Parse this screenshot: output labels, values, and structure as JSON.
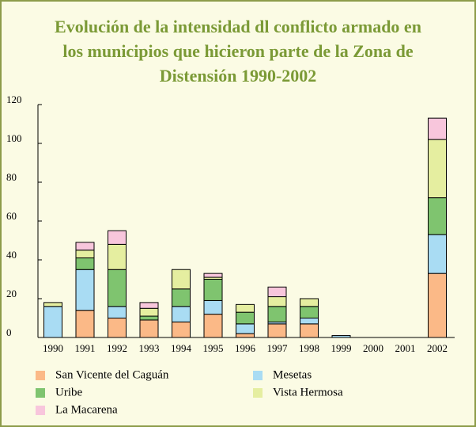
{
  "chart_data": {
    "type": "bar",
    "stacked": true,
    "title_lines": [
      "Evolución de la intensidad dl conflicto armado en",
      "los municipios que hicieron parte de la Zona de",
      "Distensión 1990-2002"
    ],
    "categories": [
      "1990",
      "1991",
      "1992",
      "1993",
      "1994",
      "1995",
      "1996",
      "1997",
      "1998",
      "1999",
      "2000",
      "2001",
      "2002"
    ],
    "series": [
      {
        "name": "San Vicente del Caguán",
        "color": "#fbb987",
        "values": [
          0,
          14,
          10,
          9,
          8,
          12,
          2,
          7,
          7,
          0,
          0,
          0,
          33
        ]
      },
      {
        "name": "Mesetas",
        "color": "#a9dcf3",
        "values": [
          16,
          21,
          6,
          0,
          8,
          7,
          5,
          1,
          3,
          1,
          0,
          0,
          20
        ]
      },
      {
        "name": "Uribe",
        "color": "#7fc46f",
        "values": [
          0,
          6,
          19,
          2,
          9,
          11,
          6,
          8,
          6,
          0,
          0,
          0,
          19
        ]
      },
      {
        "name": "Vista Hermosa",
        "color": "#e5eea0",
        "values": [
          2,
          4,
          13,
          4,
          10,
          1,
          4,
          5,
          4,
          0,
          0,
          0,
          30
        ]
      },
      {
        "name": "La Macarena",
        "color": "#f8c6dc",
        "values": [
          0,
          4,
          7,
          3,
          0,
          2,
          0,
          5,
          0,
          0,
          0,
          0,
          11
        ]
      }
    ],
    "ylim": [
      0,
      120
    ],
    "yticks": [
      0,
      20,
      40,
      60,
      80,
      100,
      120
    ]
  }
}
